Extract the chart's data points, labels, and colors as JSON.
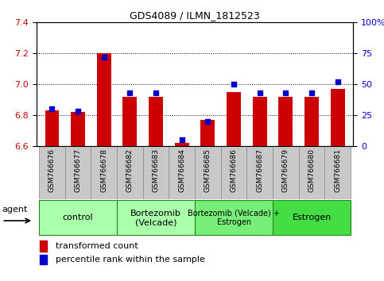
{
  "title": "GDS4089 / ILMN_1812523",
  "samples": [
    "GSM766676",
    "GSM766677",
    "GSM766678",
    "GSM766682",
    "GSM766683",
    "GSM766684",
    "GSM766685",
    "GSM766686",
    "GSM766687",
    "GSM766679",
    "GSM766680",
    "GSM766681"
  ],
  "transformed_count": [
    6.83,
    6.82,
    7.2,
    6.92,
    6.92,
    6.62,
    6.77,
    6.95,
    6.92,
    6.92,
    6.92,
    6.97
  ],
  "percentile_rank": [
    30,
    28,
    72,
    43,
    43,
    5,
    20,
    50,
    43,
    43,
    43,
    52
  ],
  "ylim_left": [
    6.6,
    7.4
  ],
  "ylim_right": [
    0,
    100
  ],
  "yticks_left": [
    6.6,
    6.8,
    7.0,
    7.2,
    7.4
  ],
  "yticks_right": [
    0,
    25,
    50,
    75,
    100
  ],
  "bar_color_red": "#cc0000",
  "dot_color_blue": "#0000cc",
  "background_plot": "#ffffff",
  "background_tick_area": "#c8c8c8",
  "group_colors": [
    "#aaffaa",
    "#aaffaa",
    "#77ee77",
    "#44dd44"
  ],
  "group_labels": [
    "control",
    "Bortezomib\n(Velcade)",
    "Bortezomib (Velcade) +\nEstrogen",
    "Estrogen"
  ],
  "group_starts": [
    0,
    3,
    6,
    9
  ],
  "group_ends": [
    3,
    6,
    9,
    12
  ],
  "group_border_color": "#228822",
  "agent_label": "agent",
  "legend_red_label": "transformed count",
  "legend_blue_label": "percentile rank within the sample",
  "bar_width": 0.55,
  "xlim": [
    -0.6,
    11.6
  ]
}
